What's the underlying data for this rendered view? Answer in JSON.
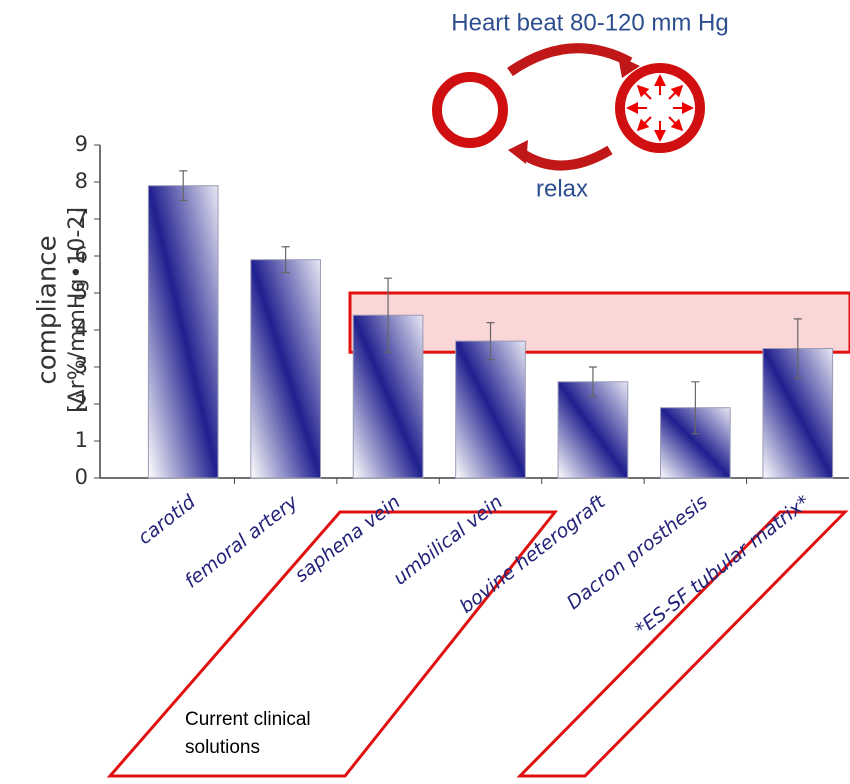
{
  "chart_data": {
    "type": "bar",
    "categories": [
      "carotid",
      "femoral artery",
      "saphena vein",
      "umbilical vein",
      "bovine heterograft",
      "Dacron prosthesis",
      "*ES-SF tubular matrix*"
    ],
    "values": [
      7.9,
      5.9,
      4.4,
      3.7,
      2.6,
      1.9,
      3.5
    ],
    "errors": [
      0.4,
      0.35,
      1.0,
      0.5,
      0.4,
      0.7,
      0.8
    ],
    "color": "#1f1f8f",
    "ylabel": [
      "compliance",
      "[Δr%/mmHg•10-2]"
    ],
    "ylim": [
      0,
      9
    ],
    "yticks": [
      0,
      1,
      2,
      3,
      4,
      5,
      6,
      7,
      8,
      9
    ],
    "highlight_band": [
      3.4,
      5.0
    ],
    "annotations": {
      "top": "Heart beat 80-120 mm Hg",
      "bottom": "relax",
      "note": [
        "Current clinical",
        "solutions"
      ]
    }
  }
}
